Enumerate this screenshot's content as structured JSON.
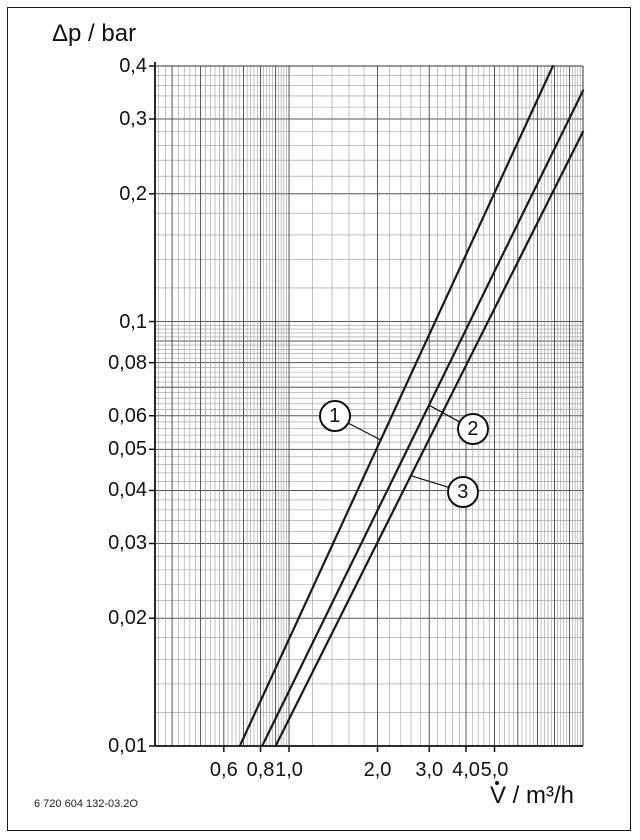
{
  "chart_data": {
    "type": "line",
    "title": "",
    "ylabel": "Δp / bar",
    "xlabel_symbol": "V",
    "xlabel_unit": " / m³/h",
    "y_scale": "log",
    "x_scale": "log",
    "ylim": [
      0.01,
      0.4
    ],
    "xlim": [
      0.35,
      10.0
    ],
    "grid": true,
    "y_ticks": [
      {
        "value": 0.4,
        "label": "0,4"
      },
      {
        "value": 0.3,
        "label": "0,3"
      },
      {
        "value": 0.2,
        "label": "0,2"
      },
      {
        "value": 0.1,
        "label": "0,1"
      },
      {
        "value": 0.08,
        "label": "0,08"
      },
      {
        "value": 0.06,
        "label": "0,06"
      },
      {
        "value": 0.05,
        "label": "0,05"
      },
      {
        "value": 0.04,
        "label": "0,04"
      },
      {
        "value": 0.03,
        "label": "0,03"
      },
      {
        "value": 0.02,
        "label": "0,02"
      },
      {
        "value": 0.01,
        "label": "0,01"
      }
    ],
    "x_ticks": [
      {
        "value": 0.6,
        "label": "0,6"
      },
      {
        "value": 0.8,
        "label": "0,8"
      },
      {
        "value": 1.0,
        "label": "1,0"
      },
      {
        "value": 2.0,
        "label": "2,0"
      },
      {
        "value": 3.0,
        "label": "3,0"
      },
      {
        "value": 4.0,
        "label": "4,0"
      },
      {
        "value": 5.0,
        "label": "5,0"
      }
    ],
    "series": [
      {
        "marker": "1",
        "points": [
          [
            0.68,
            0.01
          ],
          [
            7.9,
            0.4
          ]
        ]
      },
      {
        "marker": "2",
        "points": [
          [
            0.81,
            0.01
          ],
          [
            10.0,
            0.35
          ]
        ]
      },
      {
        "marker": "3",
        "points": [
          [
            0.9,
            0.01
          ],
          [
            10.0,
            0.28
          ]
        ]
      }
    ]
  },
  "figure_id": "6 720 604 132-03.2O"
}
